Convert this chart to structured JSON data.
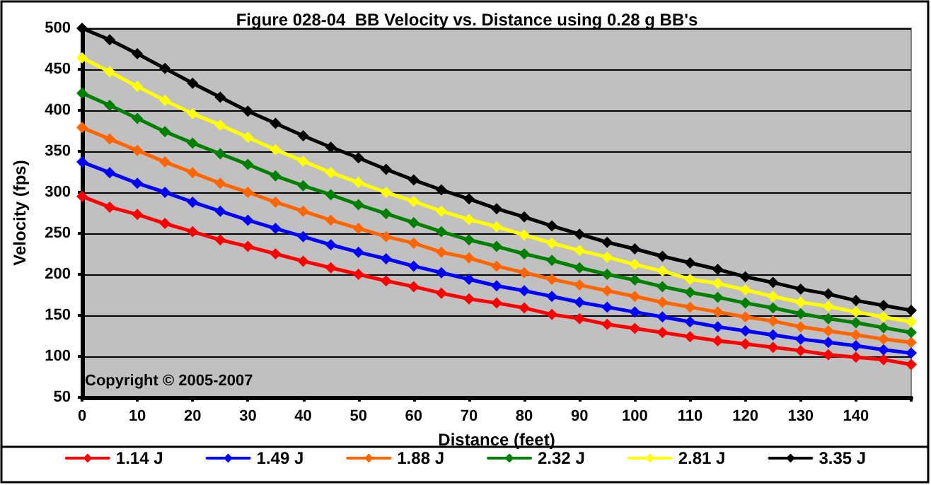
{
  "chart_data": {
    "type": "line",
    "title": "Figure 028-04  BB Velocity vs. Distance using 0.28 g BB's",
    "xlabel": "Distance (feet)",
    "ylabel": "Velocity (fps)",
    "annotations": [
      "Copyright © 2005-2007"
    ],
    "x": [
      0,
      5,
      10,
      15,
      20,
      25,
      30,
      35,
      40,
      45,
      50,
      55,
      60,
      65,
      70,
      75,
      80,
      85,
      90,
      95,
      100,
      105,
      110,
      115,
      120,
      125,
      130,
      135,
      140,
      145,
      150
    ],
    "series": [
      {
        "name": "1.14 J",
        "color": "#ff0000",
        "values": [
          295,
          282,
          273,
          262,
          252,
          242,
          234,
          225,
          216,
          208,
          200,
          192,
          185,
          177,
          170,
          165,
          159,
          151,
          146,
          139,
          134,
          129,
          124,
          119,
          115,
          111,
          107,
          102,
          99,
          96,
          90
        ]
      },
      {
        "name": "1.49 J",
        "color": "#0000ff",
        "values": [
          337,
          324,
          311,
          300,
          288,
          277,
          266,
          256,
          246,
          236,
          227,
          219,
          210,
          202,
          194,
          186,
          180,
          173,
          166,
          160,
          154,
          148,
          142,
          136,
          131,
          126,
          121,
          117,
          113,
          108,
          104
        ]
      },
      {
        "name": "1.88 J",
        "color": "#ff6600",
        "values": [
          379,
          365,
          351,
          337,
          324,
          311,
          300,
          288,
          277,
          266,
          256,
          246,
          238,
          227,
          220,
          210,
          202,
          194,
          187,
          180,
          173,
          166,
          160,
          154,
          148,
          143,
          136,
          131,
          126,
          121,
          117
        ]
      },
      {
        "name": "2.32 J",
        "color": "#008000",
        "values": [
          421,
          406,
          390,
          374,
          360,
          347,
          334,
          320,
          308,
          297,
          285,
          274,
          263,
          252,
          242,
          234,
          225,
          217,
          208,
          200,
          193,
          185,
          178,
          172,
          165,
          159,
          152,
          146,
          141,
          135,
          129
        ]
      },
      {
        "name": "2.81 J",
        "color": "#ffff00",
        "values": [
          464,
          447,
          429,
          412,
          396,
          382,
          367,
          352,
          338,
          324,
          312,
          300,
          289,
          277,
          267,
          258,
          248,
          238,
          229,
          221,
          212,
          204,
          194,
          189,
          181,
          173,
          166,
          161,
          154,
          148,
          142
        ]
      },
      {
        "name": "3.35 J",
        "color": "#000000",
        "values": [
          500,
          486,
          469,
          451,
          433,
          416,
          399,
          384,
          369,
          355,
          342,
          328,
          315,
          303,
          292,
          280,
          270,
          259,
          249,
          239,
          231,
          222,
          214,
          206,
          197,
          190,
          182,
          176,
          168,
          162,
          156
        ]
      }
    ],
    "xlim": [
      0,
      150
    ],
    "xticks": [
      0,
      10,
      20,
      30,
      40,
      50,
      60,
      70,
      80,
      90,
      100,
      110,
      120,
      130,
      140,
      {
        "value": 150,
        "label": null
      }
    ],
    "ylim": [
      50,
      500
    ],
    "yticks": [
      50,
      100,
      150,
      200,
      250,
      300,
      350,
      400,
      450,
      500
    ],
    "grid": "y",
    "legend": "bottom",
    "marker": "diamond",
    "line_style": "solid"
  }
}
